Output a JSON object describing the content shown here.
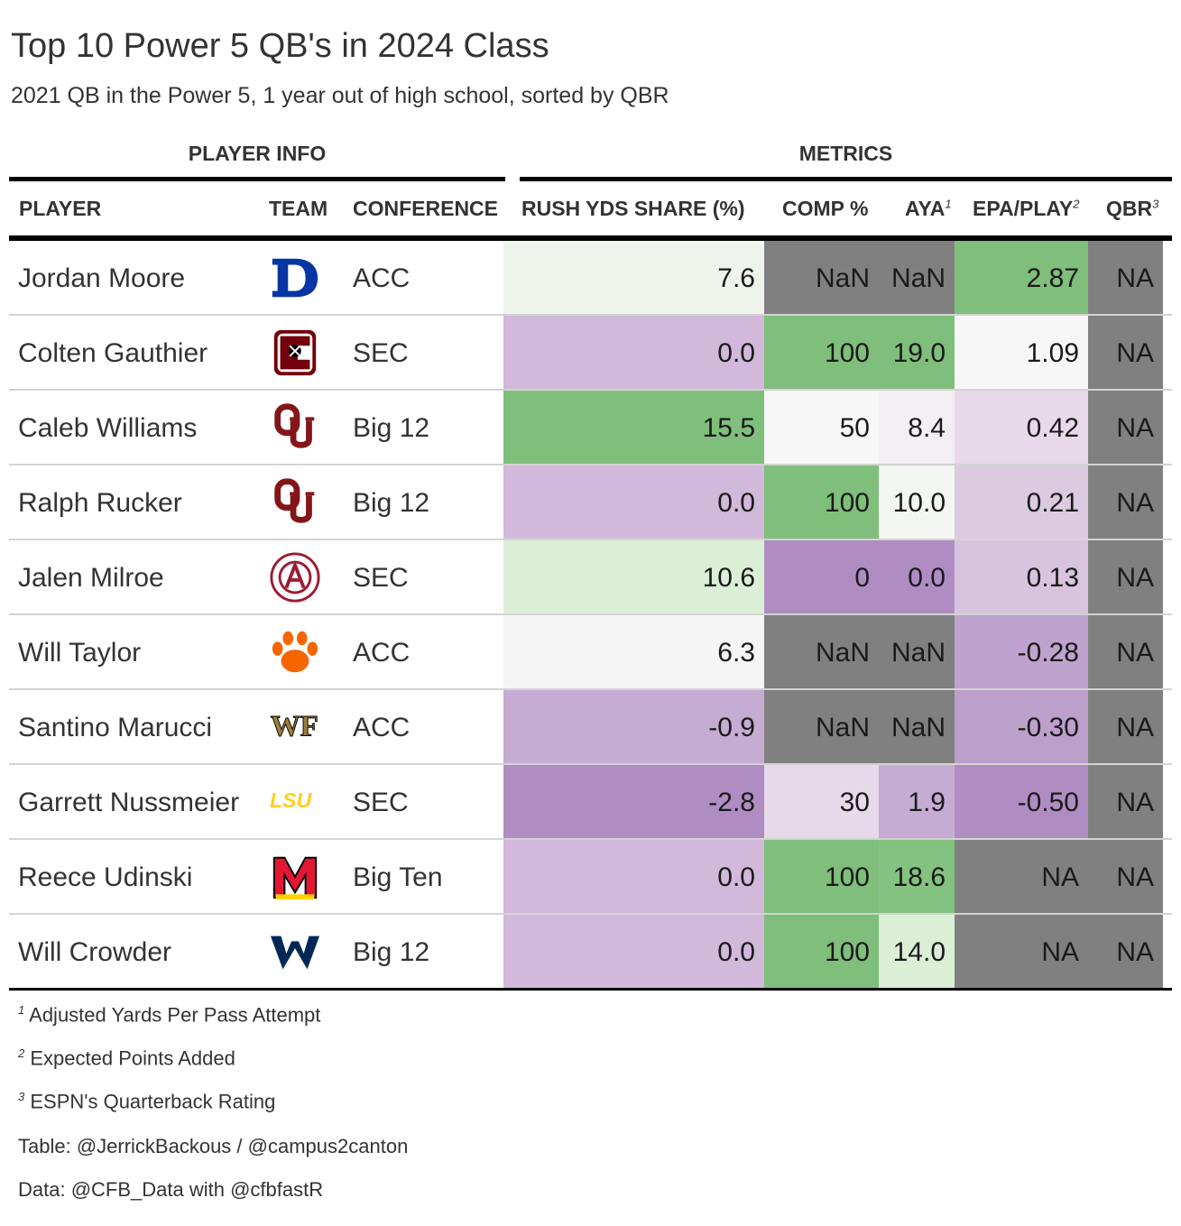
{
  "title": "Top 10 Power 5 QB's in 2024 Class",
  "subtitle": "2021 QB in the Power 5, 1 year out of high school, sorted by QBR",
  "spanners": {
    "player_info": "PLAYER INFO",
    "metrics": "METRICS"
  },
  "columns": {
    "player": "PLAYER",
    "team": "TEAM",
    "conference": "CONFERENCE",
    "rush_share": "RUSH YDS SHARE (%)",
    "comp_pct": "COMP %",
    "aya": "AYA",
    "aya_mark": "1",
    "epa": "EPA/PLAY",
    "epa_mark": "2",
    "qbr": "QBR",
    "qbr_mark": "3"
  },
  "colors": {
    "na_gray": "#808080",
    "green_strong": "#7fbf7b",
    "purple_strong": "#af8dc3"
  },
  "rows": [
    {
      "player": "Jordan Moore",
      "team_logo": "duke-logo",
      "conference": "ACC",
      "rush": "7.6",
      "comp": "NaN",
      "aya": "NaN",
      "epa": "2.87",
      "qbr": "NA",
      "bg": {
        "rush": "#eef3ec",
        "comp": "#808080",
        "aya": "#808080",
        "epa": "#7fbf7b",
        "qbr": "#808080"
      }
    },
    {
      "player": "Colten Gauthier",
      "team_logo": "south-carolina-logo",
      "conference": "SEC",
      "rush": "0.0",
      "comp": "100",
      "aya": "19.0",
      "epa": "1.09",
      "qbr": "NA",
      "bg": {
        "rush": "#d2b8da",
        "comp": "#7fbf7b",
        "aya": "#7fbf7b",
        "epa": "#f7f7f7",
        "qbr": "#808080"
      }
    },
    {
      "player": "Caleb Williams",
      "team_logo": "oklahoma-logo",
      "conference": "Big 12",
      "rush": "15.5",
      "comp": "50",
      "aya": "8.4",
      "epa": "0.42",
      "qbr": "NA",
      "bg": {
        "rush": "#7fbf7b",
        "comp": "#f7f7f7",
        "aya": "#f3eef4",
        "epa": "#e8d9ea",
        "qbr": "#808080"
      }
    },
    {
      "player": "Ralph Rucker",
      "team_logo": "oklahoma-logo",
      "conference": "Big 12",
      "rush": "0.0",
      "comp": "100",
      "aya": "10.0",
      "epa": "0.21",
      "qbr": "NA",
      "bg": {
        "rush": "#d2b8da",
        "comp": "#7fbf7b",
        "aya": "#f3f6f2",
        "epa": "#dccae1",
        "qbr": "#808080"
      }
    },
    {
      "player": "Jalen Milroe",
      "team_logo": "alabama-logo",
      "conference": "SEC",
      "rush": "10.6",
      "comp": "0",
      "aya": "0.0",
      "epa": "0.13",
      "qbr": "NA",
      "bg": {
        "rush": "#dbefd6",
        "comp": "#af8dc3",
        "aya": "#af8dc3",
        "epa": "#d8c4de",
        "qbr": "#808080"
      }
    },
    {
      "player": "Will Taylor",
      "team_logo": "clemson-logo",
      "conference": "ACC",
      "rush": "6.3",
      "comp": "NaN",
      "aya": "NaN",
      "epa": "-0.28",
      "qbr": "NA",
      "bg": {
        "rush": "#f5f5f5",
        "comp": "#808080",
        "aya": "#808080",
        "epa": "#bfa2cd",
        "qbr": "#808080"
      }
    },
    {
      "player": "Santino Marucci",
      "team_logo": "wake-forest-logo",
      "conference": "ACC",
      "rush": "-0.9",
      "comp": "NaN",
      "aya": "NaN",
      "epa": "-0.30",
      "qbr": "NA",
      "bg": {
        "rush": "#c6acd3",
        "comp": "#808080",
        "aya": "#808080",
        "epa": "#bd9fcb",
        "qbr": "#808080"
      }
    },
    {
      "player": "Garrett Nussmeier",
      "team_logo": "lsu-logo",
      "conference": "SEC",
      "rush": "-2.8",
      "comp": "30",
      "aya": "1.9",
      "epa": "-0.50",
      "qbr": "NA",
      "bg": {
        "rush": "#af8dc3",
        "comp": "#e8d9ea",
        "aya": "#c6acd3",
        "epa": "#af8dc3",
        "qbr": "#808080"
      }
    },
    {
      "player": "Reece Udinski",
      "team_logo": "maryland-logo",
      "conference": "Big Ten",
      "rush": "0.0",
      "comp": "100",
      "aya": "18.6",
      "epa": "NA",
      "qbr": "NA",
      "bg": {
        "rush": "#d2b8da",
        "comp": "#7fbf7b",
        "aya": "#84c27f",
        "epa": "#808080",
        "qbr": "#808080"
      }
    },
    {
      "player": "Will Crowder",
      "team_logo": "west-virginia-logo",
      "conference": "Big 12",
      "rush": "0.0",
      "comp": "100",
      "aya": "14.0",
      "epa": "NA",
      "qbr": "NA",
      "bg": {
        "rush": "#d2b8da",
        "comp": "#7fbf7b",
        "aya": "#dbefd6",
        "epa": "#808080",
        "qbr": "#808080"
      }
    }
  ],
  "footnotes": [
    {
      "mark": "1",
      "text": "Adjusted Yards Per Pass Attempt"
    },
    {
      "mark": "2",
      "text": "Expected Points Added"
    },
    {
      "mark": "3",
      "text": "ESPN's Quarterback Rating"
    }
  ],
  "source_notes": [
    "Table: @JerrickBackous / @campus2canton",
    "Data: @CFB_Data with @cfbfastR"
  ]
}
